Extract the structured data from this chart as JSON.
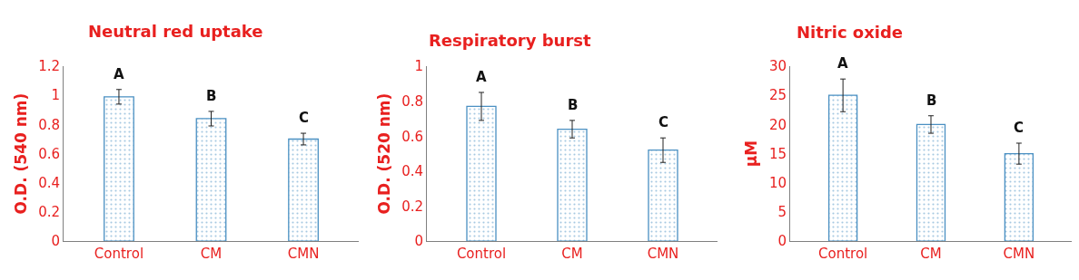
{
  "chart_data": [
    {
      "type": "bar",
      "title": "Neutral red uptake",
      "ylabel": "O.D. (540 nm)",
      "categories": [
        "Control",
        "CM",
        "CMN"
      ],
      "values": [
        0.99,
        0.84,
        0.7
      ],
      "errors": [
        0.05,
        0.05,
        0.04
      ],
      "color": "#4a90c2",
      "ylim": [
        0,
        1.2
      ],
      "yticks": [
        0,
        0.2,
        0.4,
        0.6,
        0.8,
        1,
        1.2
      ],
      "annotations": [
        "A",
        "B",
        "C"
      ]
    },
    {
      "type": "bar",
      "title": "Respiratory burst",
      "ylabel": "O.D. (520 nm)",
      "categories": [
        "Control",
        "CM",
        "CMN"
      ],
      "values": [
        0.77,
        0.64,
        0.52
      ],
      "errors": [
        0.08,
        0.05,
        0.07
      ],
      "color": "#4a90c2",
      "ylim": [
        0,
        1
      ],
      "yticks": [
        0,
        0.2,
        0.4,
        0.6,
        0.8,
        1
      ],
      "annotations": [
        "A",
        "B",
        "C"
      ]
    },
    {
      "type": "bar",
      "title": "Nitric oxide",
      "ylabel": "µM",
      "categories": [
        "Control",
        "CM",
        "CMN"
      ],
      "values": [
        25,
        20,
        15
      ],
      "errors": [
        2.8,
        1.5,
        1.8
      ],
      "color": "#4a90c2",
      "ylim": [
        0,
        30
      ],
      "yticks": [
        0,
        5,
        10,
        15,
        20,
        25,
        30
      ],
      "annotations": [
        "A",
        "B",
        "C"
      ]
    }
  ]
}
